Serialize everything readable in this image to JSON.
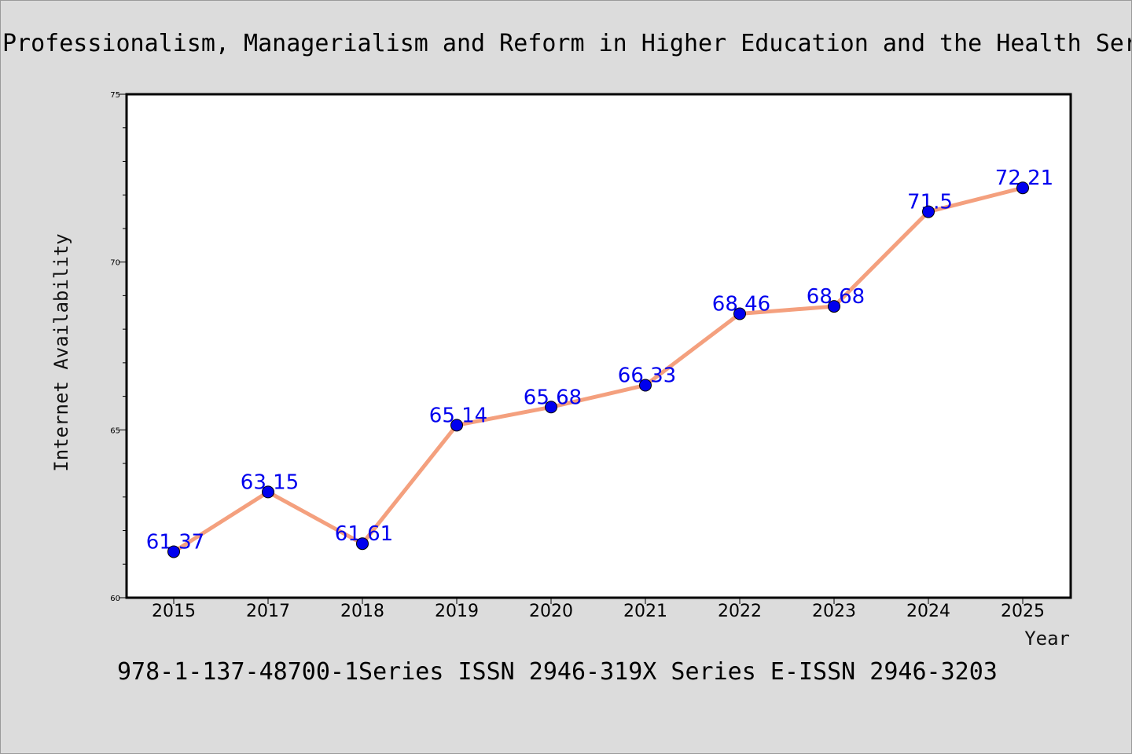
{
  "chart_data": {
    "type": "line",
    "title": "Professionalism, Managerialism and Reform in Higher Education and the Health Services",
    "xlabel": "Year",
    "ylabel": "Internet Availability",
    "categories": [
      "2015",
      "2017",
      "2018",
      "2019",
      "2020",
      "2021",
      "2022",
      "2023",
      "2024",
      "2025"
    ],
    "series": [
      {
        "values": [
          61.37,
          63.15,
          61.61,
          65.14,
          65.68,
          66.33,
          68.46,
          68.68,
          71.5,
          72.21
        ],
        "labels": [
          "61.37",
          "63.15",
          "61.61",
          "65.14",
          "65.68",
          "66.33",
          "68.46",
          "68.68",
          "71.5",
          "72.21"
        ]
      }
    ],
    "ylim": [
      60,
      75
    ],
    "yticks": [
      60,
      65,
      70,
      75
    ],
    "grid": false,
    "line_color": "#f4a07e",
    "marker_color": "#0000ee",
    "label_color": "#0000ee",
    "background": "#dcdcdc",
    "plot_background": "#ffffff"
  },
  "footer": {
    "text": "978-1-137-48700-1Series ISSN 2946-319X Series E-ISSN 2946-3203"
  }
}
